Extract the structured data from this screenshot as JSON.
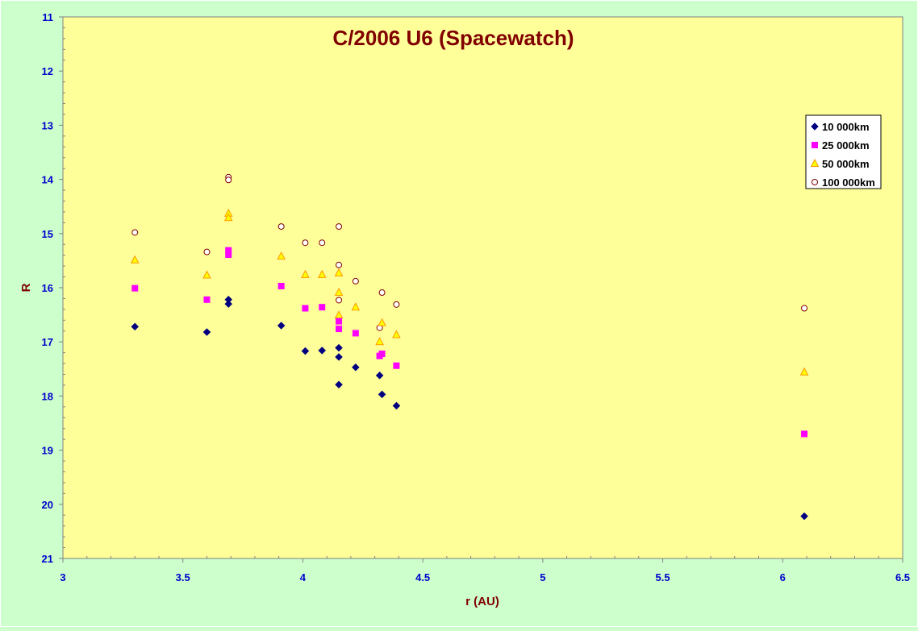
{
  "colors": {
    "page_background": "#ccffcc",
    "plot_background": "#ffff99",
    "title": "#800000",
    "axis_title": "#800000",
    "tick_label": "#0000cc",
    "axis_line": "#808080"
  },
  "chart_data": {
    "type": "scatter",
    "title": "C/2006 U6 (Spacewatch)",
    "xlabel": "r (AU)",
    "ylabel": "R",
    "xlim": [
      3,
      6.5
    ],
    "ylim": [
      11,
      21
    ],
    "y_inverted": true,
    "x_ticks": [
      "3",
      "3.5",
      "4",
      "4.5",
      "5",
      "5.5",
      "6",
      "6.5"
    ],
    "y_ticks": [
      "11",
      "12",
      "13",
      "14",
      "15",
      "16",
      "17",
      "18",
      "19",
      "20",
      "21"
    ],
    "grid": false,
    "legend_position": "top-right",
    "series": [
      {
        "name": "10 000km",
        "marker": "diamond",
        "color": "#000080",
        "points": [
          [
            3.3,
            16.72
          ],
          [
            3.6,
            16.82
          ],
          [
            3.69,
            16.22
          ],
          [
            3.69,
            16.3
          ],
          [
            3.91,
            16.7
          ],
          [
            4.01,
            17.17
          ],
          [
            4.08,
            17.16
          ],
          [
            4.15,
            17.11
          ],
          [
            4.15,
            17.28
          ],
          [
            4.15,
            17.79
          ],
          [
            4.22,
            17.47
          ],
          [
            4.32,
            17.62
          ],
          [
            4.33,
            17.97
          ],
          [
            4.39,
            18.18
          ],
          [
            6.09,
            20.22
          ]
        ]
      },
      {
        "name": "25 000km",
        "marker": "square",
        "color": "#ff00ff",
        "points": [
          [
            3.3,
            16.01
          ],
          [
            3.6,
            16.22
          ],
          [
            3.69,
            15.31
          ],
          [
            3.69,
            15.39
          ],
          [
            3.91,
            15.97
          ],
          [
            4.01,
            16.38
          ],
          [
            4.08,
            16.36
          ],
          [
            4.15,
            16.62
          ],
          [
            4.15,
            16.76
          ],
          [
            4.22,
            16.84
          ],
          [
            4.32,
            17.26
          ],
          [
            4.33,
            17.22
          ],
          [
            4.39,
            17.44
          ],
          [
            6.09,
            18.7
          ]
        ]
      },
      {
        "name": "50 000km",
        "marker": "triangle",
        "color": "#ff9900",
        "fill": "#ffff00",
        "points": [
          [
            3.3,
            15.49
          ],
          [
            3.6,
            15.77
          ],
          [
            3.69,
            14.63
          ],
          [
            3.69,
            14.71
          ],
          [
            3.91,
            15.42
          ],
          [
            4.01,
            15.76
          ],
          [
            4.08,
            15.76
          ],
          [
            4.15,
            15.73
          ],
          [
            4.15,
            16.09
          ],
          [
            4.15,
            16.51
          ],
          [
            4.22,
            16.36
          ],
          [
            4.32,
            17.0
          ],
          [
            4.33,
            16.65
          ],
          [
            4.39,
            16.87
          ],
          [
            6.09,
            17.56
          ]
        ]
      },
      {
        "name": "100 000km",
        "marker": "circle",
        "color": "#800000",
        "fill": "#ffffff",
        "points": [
          [
            3.3,
            14.98
          ],
          [
            3.6,
            15.34
          ],
          [
            3.69,
            13.96
          ],
          [
            3.69,
            14.01
          ],
          [
            3.91,
            14.87
          ],
          [
            4.01,
            15.17
          ],
          [
            4.08,
            15.17
          ],
          [
            4.15,
            14.87
          ],
          [
            4.15,
            15.58
          ],
          [
            4.15,
            16.23
          ],
          [
            4.22,
            15.88
          ],
          [
            4.32,
            16.74
          ],
          [
            4.33,
            16.09
          ],
          [
            4.39,
            16.31
          ],
          [
            6.09,
            16.38
          ]
        ]
      }
    ]
  }
}
